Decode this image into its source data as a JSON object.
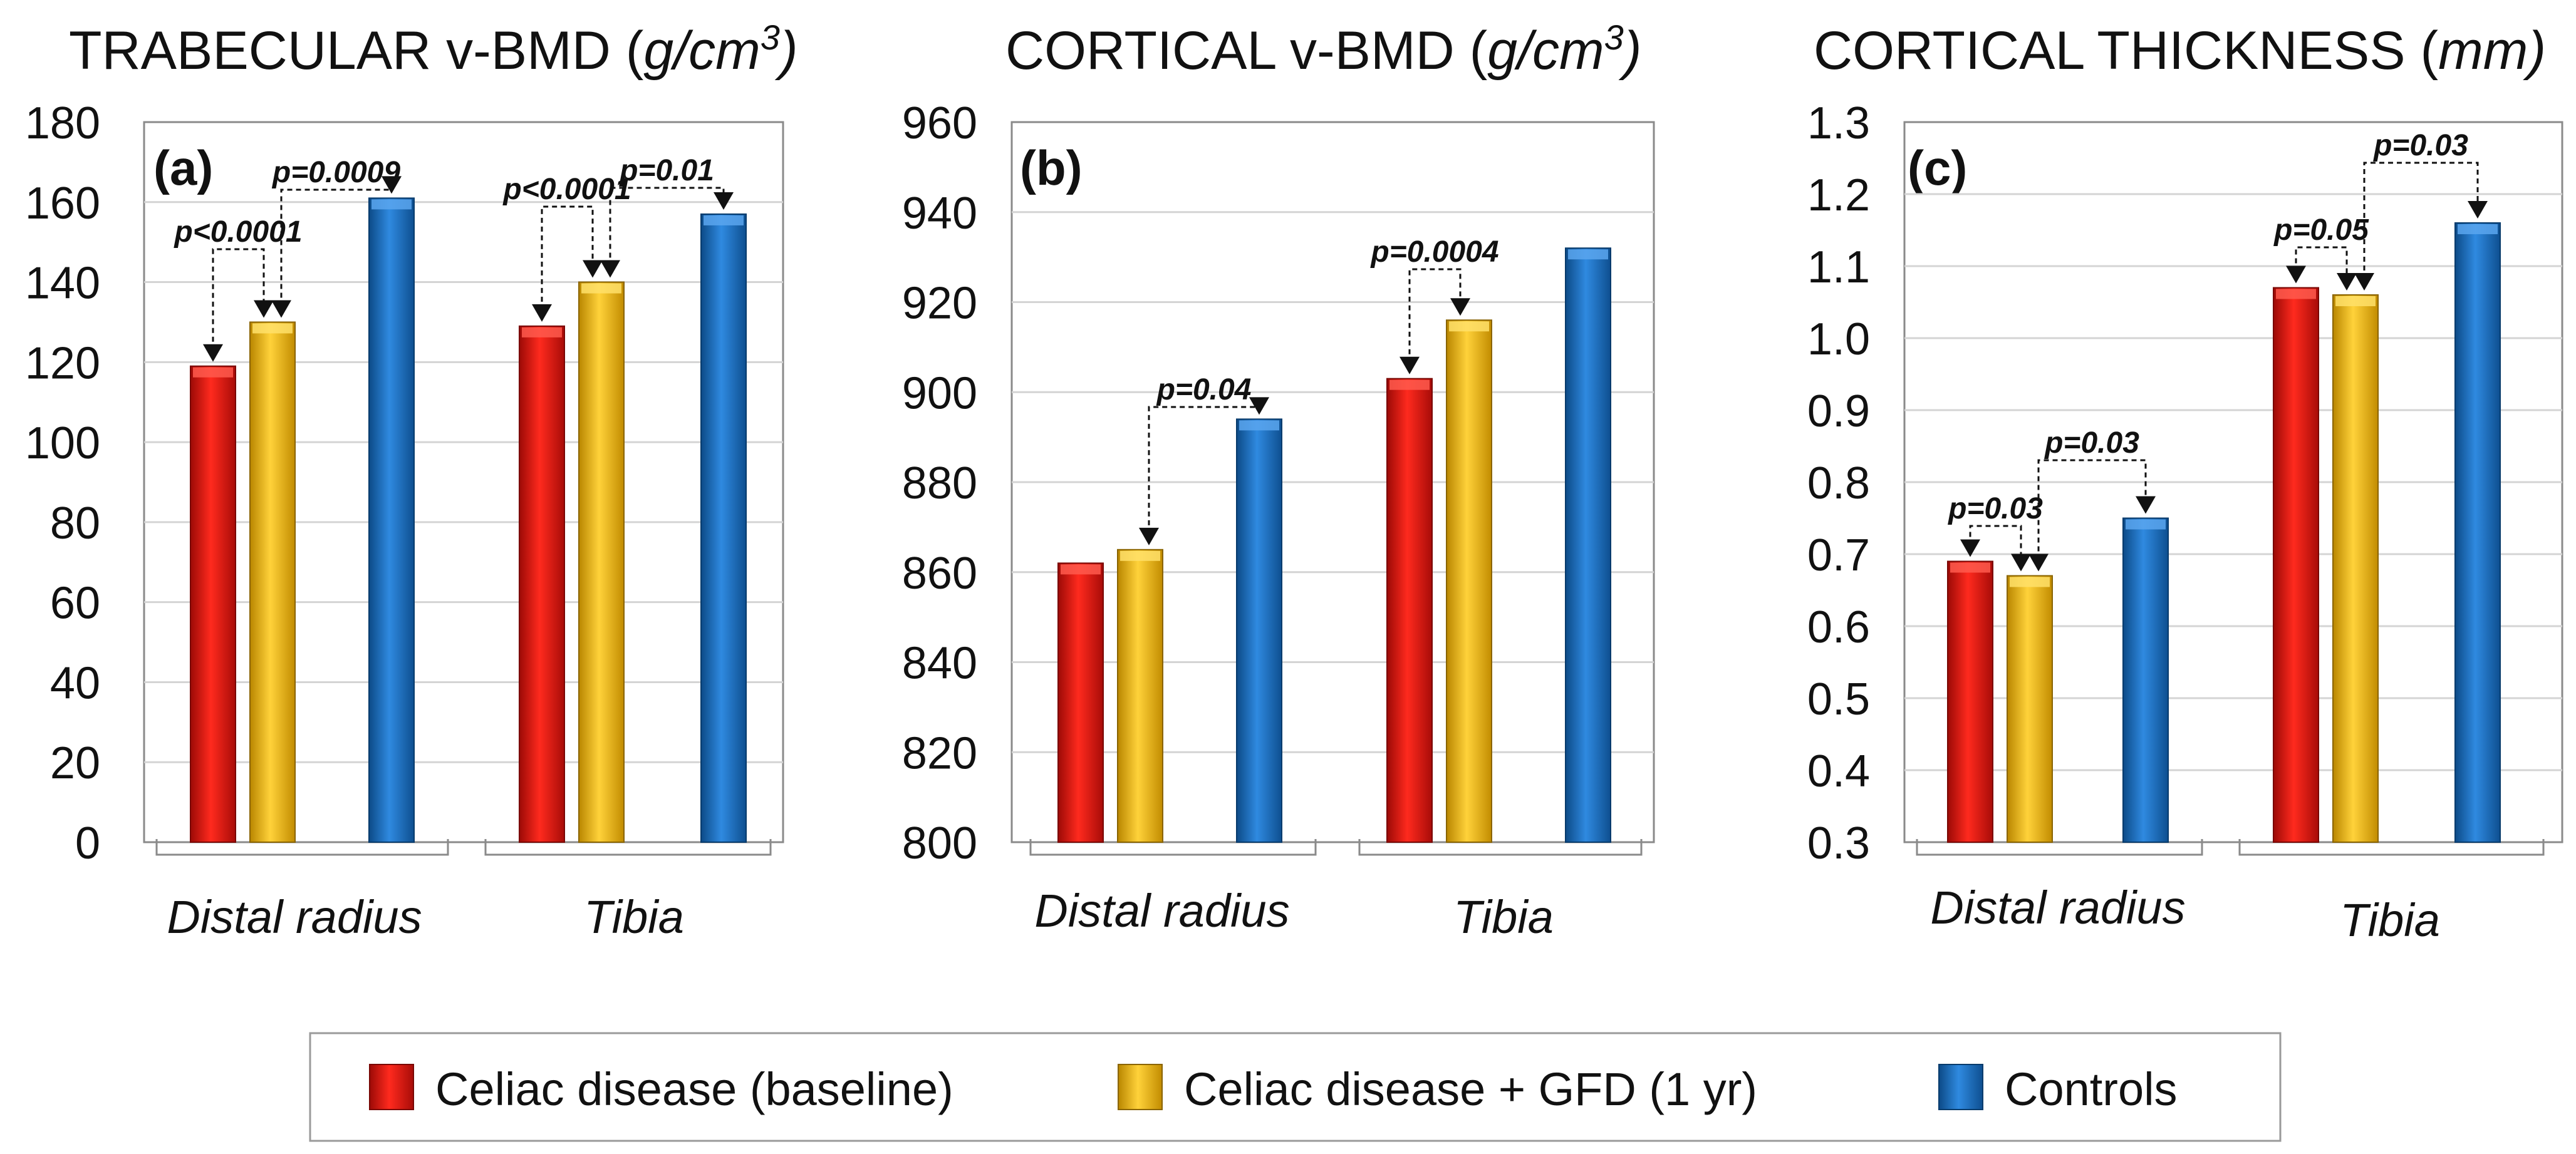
{
  "chart_data": [
    {
      "type": "bar",
      "panel_label": "(a)",
      "title": "TRABECULAR v-BMD",
      "title_unit": "g/cm",
      "title_unit_sup": "3",
      "title_unit_close": ")",
      "groups": [
        "Distal radius",
        "Tibia"
      ],
      "series": [
        {
          "name": "Celiac disease (baseline)",
          "values": [
            119,
            129
          ]
        },
        {
          "name": "Celiac disease + GFD (1 yr)",
          "values": [
            130,
            140
          ]
        },
        {
          "name": "Controls",
          "values": [
            161,
            157
          ]
        }
      ],
      "ylim": [
        0,
        180
      ],
      "yticks": [
        "0",
        "20",
        "40",
        "60",
        "80",
        "100",
        "120",
        "140",
        "160",
        "180"
      ],
      "annotations": [
        {
          "text": "p<0.0001",
          "group": 0,
          "from": 0,
          "to": 1
        },
        {
          "text": "p=0.0009",
          "group": 0,
          "from": 1,
          "to": 2
        },
        {
          "text": "p<0.0001",
          "group": 1,
          "from": 0,
          "to": 1
        },
        {
          "text": "p=0.01",
          "group": 1,
          "from": 1,
          "to": 2
        }
      ]
    },
    {
      "type": "bar",
      "panel_label": "(b)",
      "title": "CORTICAL v-BMD",
      "title_unit": "g/cm",
      "title_unit_sup": "3",
      "title_unit_close": ")",
      "groups": [
        "Distal radius",
        "Tibia"
      ],
      "series": [
        {
          "name": "Celiac disease (baseline)",
          "values": [
            862,
            903
          ]
        },
        {
          "name": "Celiac disease + GFD (1 yr)",
          "values": [
            865,
            916
          ]
        },
        {
          "name": "Controls",
          "values": [
            894,
            932
          ]
        }
      ],
      "ylim": [
        800,
        960
      ],
      "yticks": [
        "800",
        "820",
        "840",
        "860",
        "880",
        "900",
        "920",
        "940",
        "960"
      ],
      "annotations": [
        {
          "text": "p=0.04",
          "group": 0,
          "from": 1,
          "to": 2
        },
        {
          "text": "p=0.0004",
          "group": 1,
          "from": 0,
          "to": 1
        }
      ]
    },
    {
      "type": "bar",
      "panel_label": "(c)",
      "title": "CORTICAL THICKNESS",
      "title_unit": "mm",
      "title_unit_sup": "",
      "title_unit_close": ")",
      "groups": [
        "Distal radius",
        "Tibia"
      ],
      "series": [
        {
          "name": "Celiac disease (baseline)",
          "values": [
            0.69,
            1.07
          ]
        },
        {
          "name": "Celiac disease + GFD (1 yr)",
          "values": [
            0.67,
            1.06
          ]
        },
        {
          "name": "Controls",
          "values": [
            0.75,
            1.16
          ]
        }
      ],
      "ylim": [
        0.3,
        1.3
      ],
      "yticks": [
        "0.3",
        "0.4",
        "0.5",
        "0.6",
        "0.7",
        "0.8",
        "0.9",
        "1.0",
        "1.1",
        "1.2",
        "1.3"
      ],
      "annotations": [
        {
          "text": "p=0.03",
          "group": 0,
          "from": 0,
          "to": 1
        },
        {
          "text": "p=0.03",
          "group": 0,
          "from": 1,
          "to": 2
        },
        {
          "text": "p=0.05",
          "group": 1,
          "from": 0,
          "to": 1
        },
        {
          "text": "p=0.03",
          "group": 1,
          "from": 1,
          "to": 2
        }
      ]
    }
  ],
  "legend": {
    "items": [
      {
        "label": "Celiac disease (baseline)",
        "color": "#e8120c"
      },
      {
        "label": "Celiac disease + GFD (1 yr)",
        "color": "#f3b400"
      },
      {
        "label": "Controls",
        "color": "#1a6db8"
      }
    ]
  },
  "colors": {
    "red": "#e8120c",
    "yellow": "#f3b400",
    "blue": "#1a6db8",
    "grid": "#d4d4d4",
    "axis": "#8a8a8a"
  }
}
